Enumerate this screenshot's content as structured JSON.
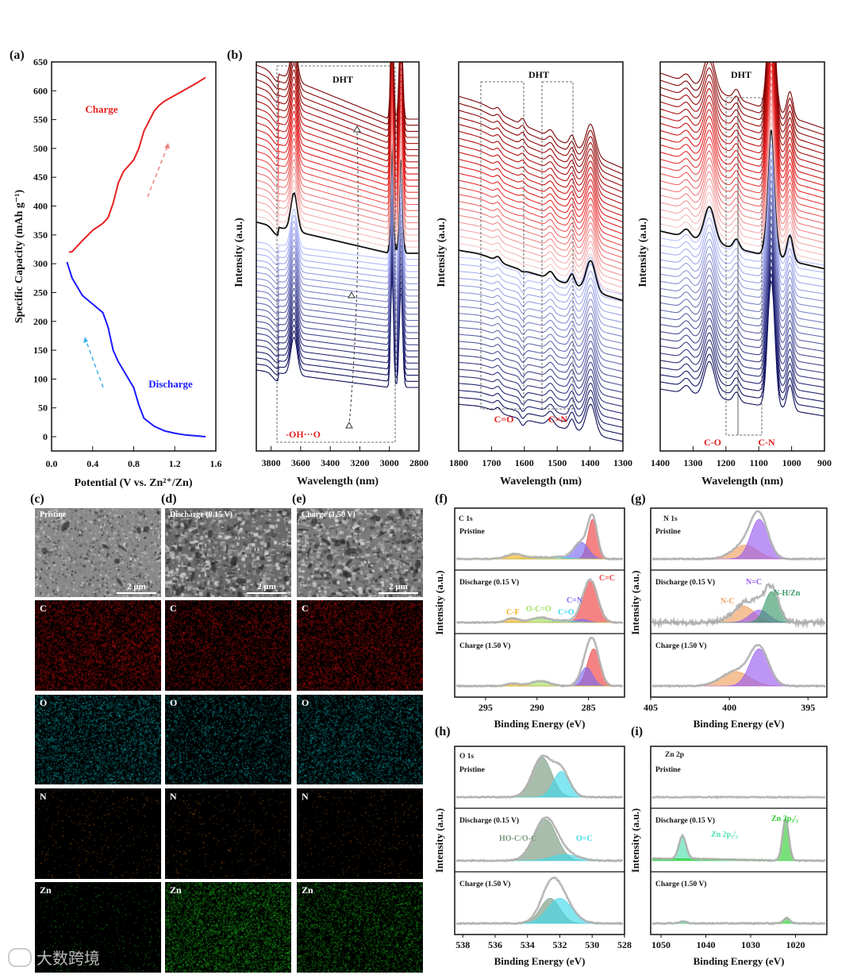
{
  "panel_labels": {
    "a": "(a)",
    "b": "(b)",
    "c": "(c)",
    "d": "(d)",
    "e": "(e)",
    "f": "(f)",
    "g": "(g)",
    "h": "(h)",
    "i": "(i)"
  },
  "colors": {
    "charge": "#e82020",
    "discharge": "#1a1aff",
    "charge_arrow": "#f08080",
    "discharge_arrow": "#40b0f0",
    "annotation": "#e02020"
  },
  "chart_data": [
    {
      "id": "a",
      "type": "line",
      "xlabel": "Potential (V vs. Zn²⁺/Zn)",
      "ylabel": "Specific Capacity (mAh g⁻¹)",
      "xlim": [
        0,
        1.6
      ],
      "ylim": [
        -25,
        650
      ],
      "xticks": [
        "0.0",
        "0.4",
        "0.8",
        "1.2",
        "1.6"
      ],
      "yticks": [
        "0",
        "50",
        "100",
        "150",
        "200",
        "250",
        "300",
        "350",
        "400",
        "450",
        "500",
        "550",
        "600",
        "650"
      ],
      "series": [
        {
          "name": "Charge",
          "color": "#e82020",
          "x": [
            0.17,
            0.2,
            0.3,
            0.4,
            0.5,
            0.55,
            0.6,
            0.65,
            0.7,
            0.8,
            0.85,
            0.9,
            1.0,
            1.05,
            1.1,
            1.2,
            1.3,
            1.4,
            1.5
          ],
          "y": [
            320,
            321,
            340,
            358,
            370,
            380,
            405,
            440,
            460,
            480,
            500,
            530,
            565,
            575,
            582,
            592,
            602,
            612,
            623
          ]
        },
        {
          "name": "Discharge",
          "color": "#1a1aff",
          "x": [
            0.15,
            0.2,
            0.3,
            0.4,
            0.5,
            0.55,
            0.6,
            0.65,
            0.7,
            0.8,
            0.85,
            0.9,
            1.0,
            1.1,
            1.2,
            1.3,
            1.5
          ],
          "y": [
            303,
            275,
            245,
            230,
            215,
            190,
            150,
            130,
            115,
            85,
            55,
            32,
            18,
            10,
            6,
            3,
            0
          ]
        }
      ]
    },
    {
      "id": "b",
      "type": "line",
      "ylabel": "Intensity (a.u.)",
      "xlabel": "Wavelength (nm)",
      "curves_charge": 22,
      "curves_discharge": 22,
      "subplots": [
        {
          "xlim": [
            3900,
            2800
          ],
          "xticks": [
            "3800",
            "3600",
            "3400",
            "3200",
            "3000",
            "2800"
          ],
          "title": "DHT",
          "annotations": [
            "-OH···O"
          ]
        },
        {
          "xlim": [
            1800,
            1300
          ],
          "xticks": [
            "1800",
            "1700",
            "1600",
            "1500",
            "1400",
            "1300"
          ],
          "title": "DHT",
          "annotations": [
            "C=O",
            "C=N"
          ]
        },
        {
          "xlim": [
            1400,
            900
          ],
          "xticks": [
            "1400",
            "1300",
            "1200",
            "1100",
            "1000",
            "900"
          ],
          "title": "DHT",
          "annotations": [
            "C-O",
            "C-N"
          ]
        }
      ]
    },
    {
      "id": "f",
      "type": "area",
      "element": "C 1s",
      "xlabel": "Binding Energy (eV)",
      "ylabel": "Intensity (a.u.)",
      "xlim": [
        298,
        281.5
      ],
      "xticks": [
        "295",
        "290",
        "285"
      ],
      "rows": [
        {
          "state": "Pristine",
          "components": [
            {
              "name": "C=C",
              "center": 284.6,
              "sigma": 0.45,
              "amp": 1.0,
              "color": "#f04040"
            },
            {
              "name": "C=N",
              "center": 285.7,
              "sigma": 0.7,
              "amp": 0.42,
              "color": "#7a6af0"
            },
            {
              "name": "C=O",
              "center": 287.6,
              "sigma": 0.9,
              "amp": 0.05,
              "color": "#40d8f0"
            },
            {
              "name": "O-C=O",
              "center": 290,
              "sigma": 1.0,
              "amp": 0.04,
              "color": "#a0e060"
            },
            {
              "name": "C-F",
              "center": 292.2,
              "sigma": 0.8,
              "amp": 0.12,
              "color": "#f0b020"
            }
          ]
        },
        {
          "state": "Discharge (0.15 V)",
          "components": [
            {
              "name": "C=C",
              "center": 284.8,
              "sigma": 0.7,
              "amp": 1.0,
              "color": "#f04040"
            },
            {
              "name": "C=N",
              "center": 285.6,
              "sigma": 0.6,
              "amp": 0.08,
              "color": "#7a6af0"
            },
            {
              "name": "C=O",
              "center": 287.3,
              "sigma": 1.0,
              "amp": 0.04,
              "color": "#40d8f0"
            },
            {
              "name": "O-C=O",
              "center": 289.7,
              "sigma": 0.9,
              "amp": 0.12,
              "color": "#a0e060"
            },
            {
              "name": "C-F",
              "center": 292.4,
              "sigma": 0.6,
              "amp": 0.1,
              "color": "#f0b020"
            }
          ]
        },
        {
          "state": "Charge (1.50 V)",
          "components": [
            {
              "name": "C=C",
              "center": 284.5,
              "sigma": 0.6,
              "amp": 0.9,
              "color": "#f04040"
            },
            {
              "name": "C=N",
              "center": 285.2,
              "sigma": 0.6,
              "amp": 0.45,
              "color": "#7a6af0"
            },
            {
              "name": "O-C=O",
              "center": 289.7,
              "sigma": 0.9,
              "amp": 0.12,
              "color": "#a0e060"
            },
            {
              "name": "C-F",
              "center": 292.3,
              "sigma": 0.6,
              "amp": 0.06,
              "color": "#f0b020"
            }
          ]
        }
      ],
      "labels": [
        "C 1s",
        "C=C",
        "C=N",
        "C=O",
        "O-C=O",
        "C-F"
      ]
    },
    {
      "id": "g",
      "type": "area",
      "element": "N 1s",
      "xlabel": "Binding Energy (eV)",
      "ylabel": "Intensity (a.u.)",
      "xlim": [
        405,
        393.8
      ],
      "xticks": [
        "405",
        "400",
        "395"
      ],
      "rows": [
        {
          "state": "Pristine",
          "components": [
            {
              "name": "N-C",
              "center": 399,
              "sigma": 0.8,
              "amp": 0.35,
              "color": "#f0a060"
            },
            {
              "name": "N=C",
              "center": 398.1,
              "sigma": 0.55,
              "amp": 1.0,
              "color": "#9a5cf0"
            }
          ]
        },
        {
          "state": "Discharge (0.15 V)",
          "noise": true,
          "components": [
            {
              "name": "N-C",
              "center": 399.1,
              "sigma": 0.7,
              "amp": 0.4,
              "color": "#f0a060"
            },
            {
              "name": "N=C",
              "center": 398.1,
              "sigma": 0.6,
              "amp": 0.3,
              "color": "#9a5cf0"
            },
            {
              "name": "N-H/Zn",
              "center": 397.3,
              "sigma": 0.45,
              "amp": 0.75,
              "color": "#3a9a6a"
            }
          ]
        },
        {
          "state": "Charge (1.50 V)",
          "components": [
            {
              "name": "N-C",
              "center": 399.6,
              "sigma": 0.9,
              "amp": 0.35,
              "color": "#f0a060"
            },
            {
              "name": "N=C",
              "center": 398.1,
              "sigma": 0.6,
              "amp": 0.9,
              "color": "#9a5cf0"
            }
          ]
        }
      ],
      "labels": [
        "N 1s",
        "N=C",
        "N-C",
        "N-H/Zn"
      ]
    },
    {
      "id": "h",
      "type": "area",
      "element": "O 1s",
      "xlabel": "Binding Energy (eV)",
      "ylabel": "Intensity (a.u.)",
      "xlim": [
        538.5,
        528
      ],
      "xticks": [
        "538",
        "536",
        "534",
        "532",
        "530",
        "528"
      ],
      "rows": [
        {
          "state": "Pristine",
          "components": [
            {
              "name": "HO-C/O-C",
              "center": 533.1,
              "sigma": 0.6,
              "amp": 1.0,
              "color": "#7a9a80"
            },
            {
              "name": "O=C",
              "center": 531.9,
              "sigma": 0.5,
              "amp": 0.65,
              "color": "#40d8e8"
            }
          ]
        },
        {
          "state": "Discharge (0.15 V)",
          "components": [
            {
              "name": "HO-C/O-C",
              "center": 532.9,
              "sigma": 0.7,
              "amp": 1.0,
              "color": "#7a9a80"
            },
            {
              "name": "O=C",
              "center": 531.7,
              "sigma": 0.8,
              "amp": 0.15,
              "color": "#40d8e8"
            }
          ]
        },
        {
          "state": "Charge (1.50 V)",
          "components": [
            {
              "name": "HO-C/O-C",
              "center": 532.6,
              "sigma": 0.6,
              "amp": 0.62,
              "color": "#7a9a80"
            },
            {
              "name": "O=C",
              "center": 532.0,
              "sigma": 0.75,
              "amp": 0.62,
              "color": "#40d8e8"
            }
          ]
        }
      ],
      "labels": [
        "O 1s",
        "HO-C/O-C",
        "O=C"
      ]
    },
    {
      "id": "i",
      "type": "area",
      "element": "Zn 2p",
      "xlabel": "Binding Energy (eV)",
      "ylabel": "Intensity (a.u.)",
      "xlim": [
        1052.3,
        1013
      ],
      "xticks": [
        "1050",
        "1040",
        "1030",
        "1020"
      ],
      "rows": [
        {
          "state": "Pristine",
          "components": []
        },
        {
          "state": "Discharge (0.15 V)",
          "components": [
            {
              "name": "Zn 2p1/2",
              "center": 1045.2,
              "sigma": 0.8,
              "amp": 0.55,
              "color": "#50e0b0"
            },
            {
              "name": "Zn 2p3/2",
              "center": 1022.2,
              "sigma": 0.7,
              "amp": 1.0,
              "color": "#30d030"
            }
          ]
        },
        {
          "state": "Charge (1.50 V)",
          "components": [
            {
              "name": "Zn 2p1/2",
              "center": 1045,
              "sigma": 0.8,
              "amp": 0.05,
              "color": "#50e0b0"
            },
            {
              "name": "Zn 2p3/2",
              "center": 1022,
              "sigma": 0.7,
              "amp": 0.13,
              "color": "#30d030"
            }
          ]
        }
      ],
      "labels": [
        "Zn 2p",
        "Zn 2p₃/₂",
        "Zn 2p₁/₂"
      ]
    }
  ],
  "sem": {
    "columns": [
      "Pristine",
      "Discharge (0.15 V)",
      "Charge (1.50 V)"
    ],
    "scale_bar": "2 μm",
    "elements": [
      {
        "symbol": "C",
        "color": "#e01010",
        "density": [
          0.6,
          0.45,
          0.55
        ]
      },
      {
        "symbol": "O",
        "color": "#10c8d0",
        "density": [
          0.45,
          0.3,
          0.4
        ]
      },
      {
        "symbol": "N",
        "color": "#e08020",
        "density": [
          0.04,
          0.04,
          0.04
        ]
      },
      {
        "symbol": "Zn",
        "color": "#20d020",
        "density": [
          0.05,
          0.6,
          0.4
        ]
      }
    ]
  },
  "watermark": "大数跨境"
}
